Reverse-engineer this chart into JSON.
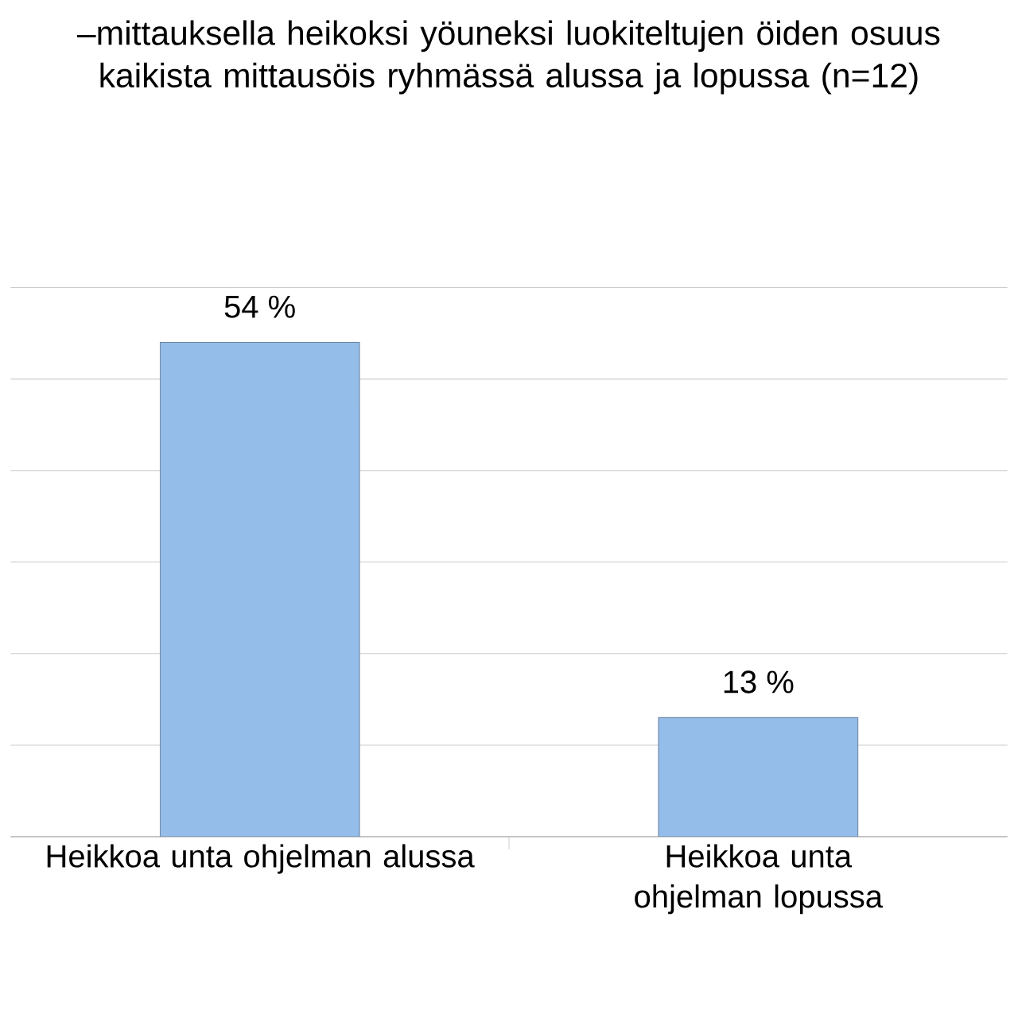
{
  "chart_data": {
    "type": "bar",
    "title": "–mittauksella heikoksi yöuneksi luokiteltujen öiden osuus kaikista mittausöis ryhmässä alussa ja lopussa (n=12)",
    "categories": [
      "Heikkoa unta ohjelman alussa",
      "Heikkoa unta ohjelman lopussa"
    ],
    "values": [
      54,
      13
    ],
    "value_labels": [
      "54 %",
      "13 %"
    ],
    "color": "#95bde9",
    "grid": "y",
    "tick_labels": "x"
  }
}
